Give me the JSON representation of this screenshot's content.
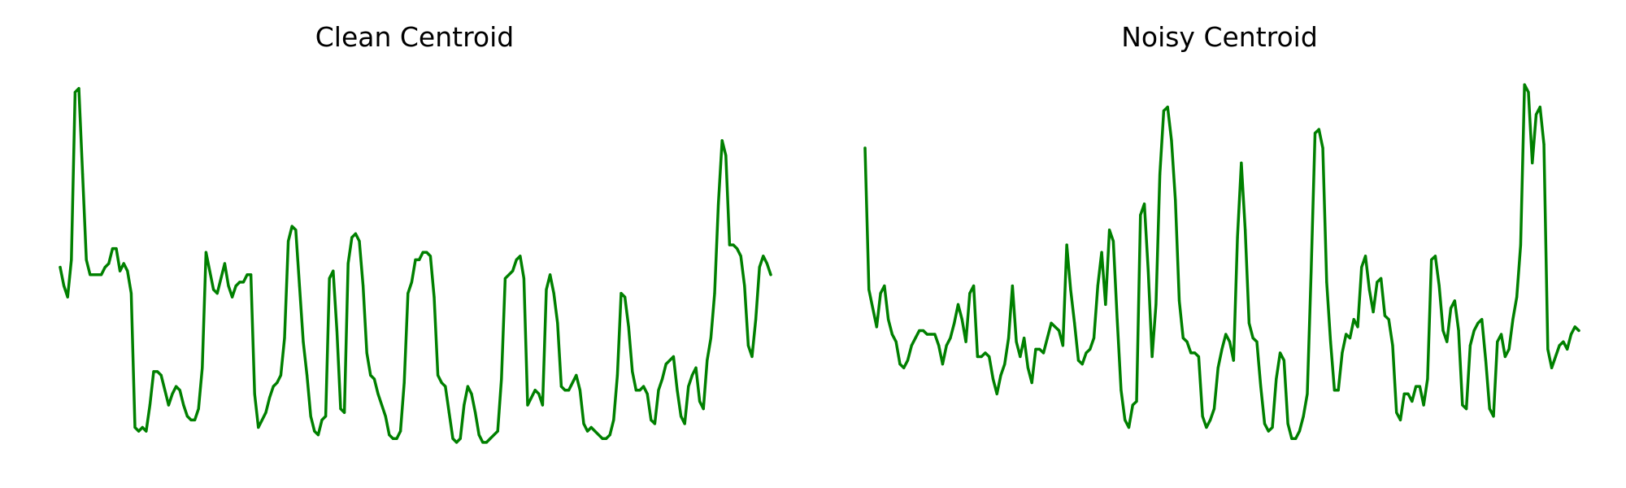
{
  "chart_data": [
    {
      "type": "line",
      "title": "Clean Centroid",
      "color": "#008000",
      "axes_visible": false,
      "grid": false,
      "ylim": [
        0,
        1
      ],
      "values": [
        0.49,
        0.44,
        0.41,
        0.51,
        0.96,
        0.97,
        0.74,
        0.51,
        0.47,
        0.47,
        0.47,
        0.47,
        0.49,
        0.5,
        0.54,
        0.54,
        0.48,
        0.5,
        0.48,
        0.42,
        0.06,
        0.05,
        0.06,
        0.05,
        0.12,
        0.21,
        0.21,
        0.2,
        0.16,
        0.12,
        0.15,
        0.17,
        0.16,
        0.12,
        0.09,
        0.08,
        0.08,
        0.11,
        0.22,
        0.53,
        0.48,
        0.43,
        0.42,
        0.46,
        0.5,
        0.44,
        0.41,
        0.44,
        0.45,
        0.45,
        0.47,
        0.47,
        0.15,
        0.06,
        0.08,
        0.1,
        0.14,
        0.17,
        0.18,
        0.2,
        0.3,
        0.56,
        0.6,
        0.59,
        0.44,
        0.29,
        0.2,
        0.09,
        0.05,
        0.04,
        0.08,
        0.09,
        0.46,
        0.48,
        0.32,
        0.11,
        0.1,
        0.5,
        0.57,
        0.58,
        0.56,
        0.44,
        0.26,
        0.2,
        0.19,
        0.15,
        0.12,
        0.09,
        0.04,
        0.03,
        0.03,
        0.05,
        0.18,
        0.42,
        0.45,
        0.51,
        0.51,
        0.53,
        0.53,
        0.52,
        0.41,
        0.2,
        0.18,
        0.17,
        0.1,
        0.03,
        0.02,
        0.03,
        0.12,
        0.17,
        0.15,
        0.1,
        0.04,
        0.02,
        0.02,
        0.03,
        0.04,
        0.05,
        0.19,
        0.46,
        0.47,
        0.48,
        0.51,
        0.52,
        0.46,
        0.12,
        0.14,
        0.16,
        0.15,
        0.12,
        0.43,
        0.47,
        0.42,
        0.34,
        0.17,
        0.16,
        0.16,
        0.18,
        0.2,
        0.16,
        0.07,
        0.05,
        0.06,
        0.05,
        0.04,
        0.03,
        0.03,
        0.04,
        0.08,
        0.2,
        0.42,
        0.41,
        0.33,
        0.21,
        0.16,
        0.16,
        0.17,
        0.15,
        0.08,
        0.07,
        0.16,
        0.19,
        0.23,
        0.24,
        0.25,
        0.16,
        0.09,
        0.07,
        0.17,
        0.2,
        0.22,
        0.13,
        0.11,
        0.24,
        0.3,
        0.42,
        0.66,
        0.83,
        0.79,
        0.55,
        0.55,
        0.54,
        0.52,
        0.44,
        0.28,
        0.25,
        0.35,
        0.49,
        0.52,
        0.5,
        0.47
      ]
    },
    {
      "type": "line",
      "title": "Noisy Centroid",
      "color": "#008000",
      "axes_visible": false,
      "grid": false,
      "ylim": [
        0,
        1
      ],
      "values": [
        0.81,
        0.43,
        0.38,
        0.33,
        0.42,
        0.44,
        0.35,
        0.31,
        0.29,
        0.23,
        0.22,
        0.24,
        0.28,
        0.3,
        0.32,
        0.32,
        0.31,
        0.31,
        0.31,
        0.28,
        0.23,
        0.28,
        0.3,
        0.34,
        0.39,
        0.35,
        0.29,
        0.42,
        0.44,
        0.25,
        0.25,
        0.26,
        0.25,
        0.19,
        0.15,
        0.2,
        0.23,
        0.3,
        0.44,
        0.29,
        0.25,
        0.3,
        0.22,
        0.18,
        0.27,
        0.27,
        0.26,
        0.3,
        0.34,
        0.33,
        0.32,
        0.28,
        0.55,
        0.43,
        0.34,
        0.24,
        0.23,
        0.26,
        0.27,
        0.3,
        0.44,
        0.53,
        0.39,
        0.59,
        0.56,
        0.35,
        0.16,
        0.08,
        0.06,
        0.12,
        0.13,
        0.63,
        0.66,
        0.48,
        0.25,
        0.39,
        0.74,
        0.91,
        0.92,
        0.83,
        0.67,
        0.4,
        0.3,
        0.29,
        0.26,
        0.26,
        0.25,
        0.09,
        0.06,
        0.08,
        0.11,
        0.22,
        0.27,
        0.31,
        0.29,
        0.24,
        0.57,
        0.77,
        0.59,
        0.34,
        0.3,
        0.29,
        0.17,
        0.07,
        0.05,
        0.06,
        0.19,
        0.26,
        0.24,
        0.07,
        0.03,
        0.03,
        0.05,
        0.09,
        0.15,
        0.48,
        0.85,
        0.86,
        0.81,
        0.45,
        0.29,
        0.16,
        0.16,
        0.26,
        0.31,
        0.3,
        0.35,
        0.33,
        0.49,
        0.52,
        0.43,
        0.37,
        0.45,
        0.46,
        0.36,
        0.35,
        0.28,
        0.1,
        0.08,
        0.15,
        0.15,
        0.13,
        0.17,
        0.17,
        0.12,
        0.19,
        0.51,
        0.52,
        0.44,
        0.32,
        0.29,
        0.38,
        0.4,
        0.32,
        0.12,
        0.11,
        0.28,
        0.32,
        0.34,
        0.35,
        0.24,
        0.11,
        0.09,
        0.29,
        0.31,
        0.25,
        0.27,
        0.35,
        0.41,
        0.55,
        0.98,
        0.96,
        0.77,
        0.9,
        0.92,
        0.82,
        0.27,
        0.22,
        0.25,
        0.28,
        0.29,
        0.27,
        0.31,
        0.33,
        0.32
      ]
    }
  ]
}
